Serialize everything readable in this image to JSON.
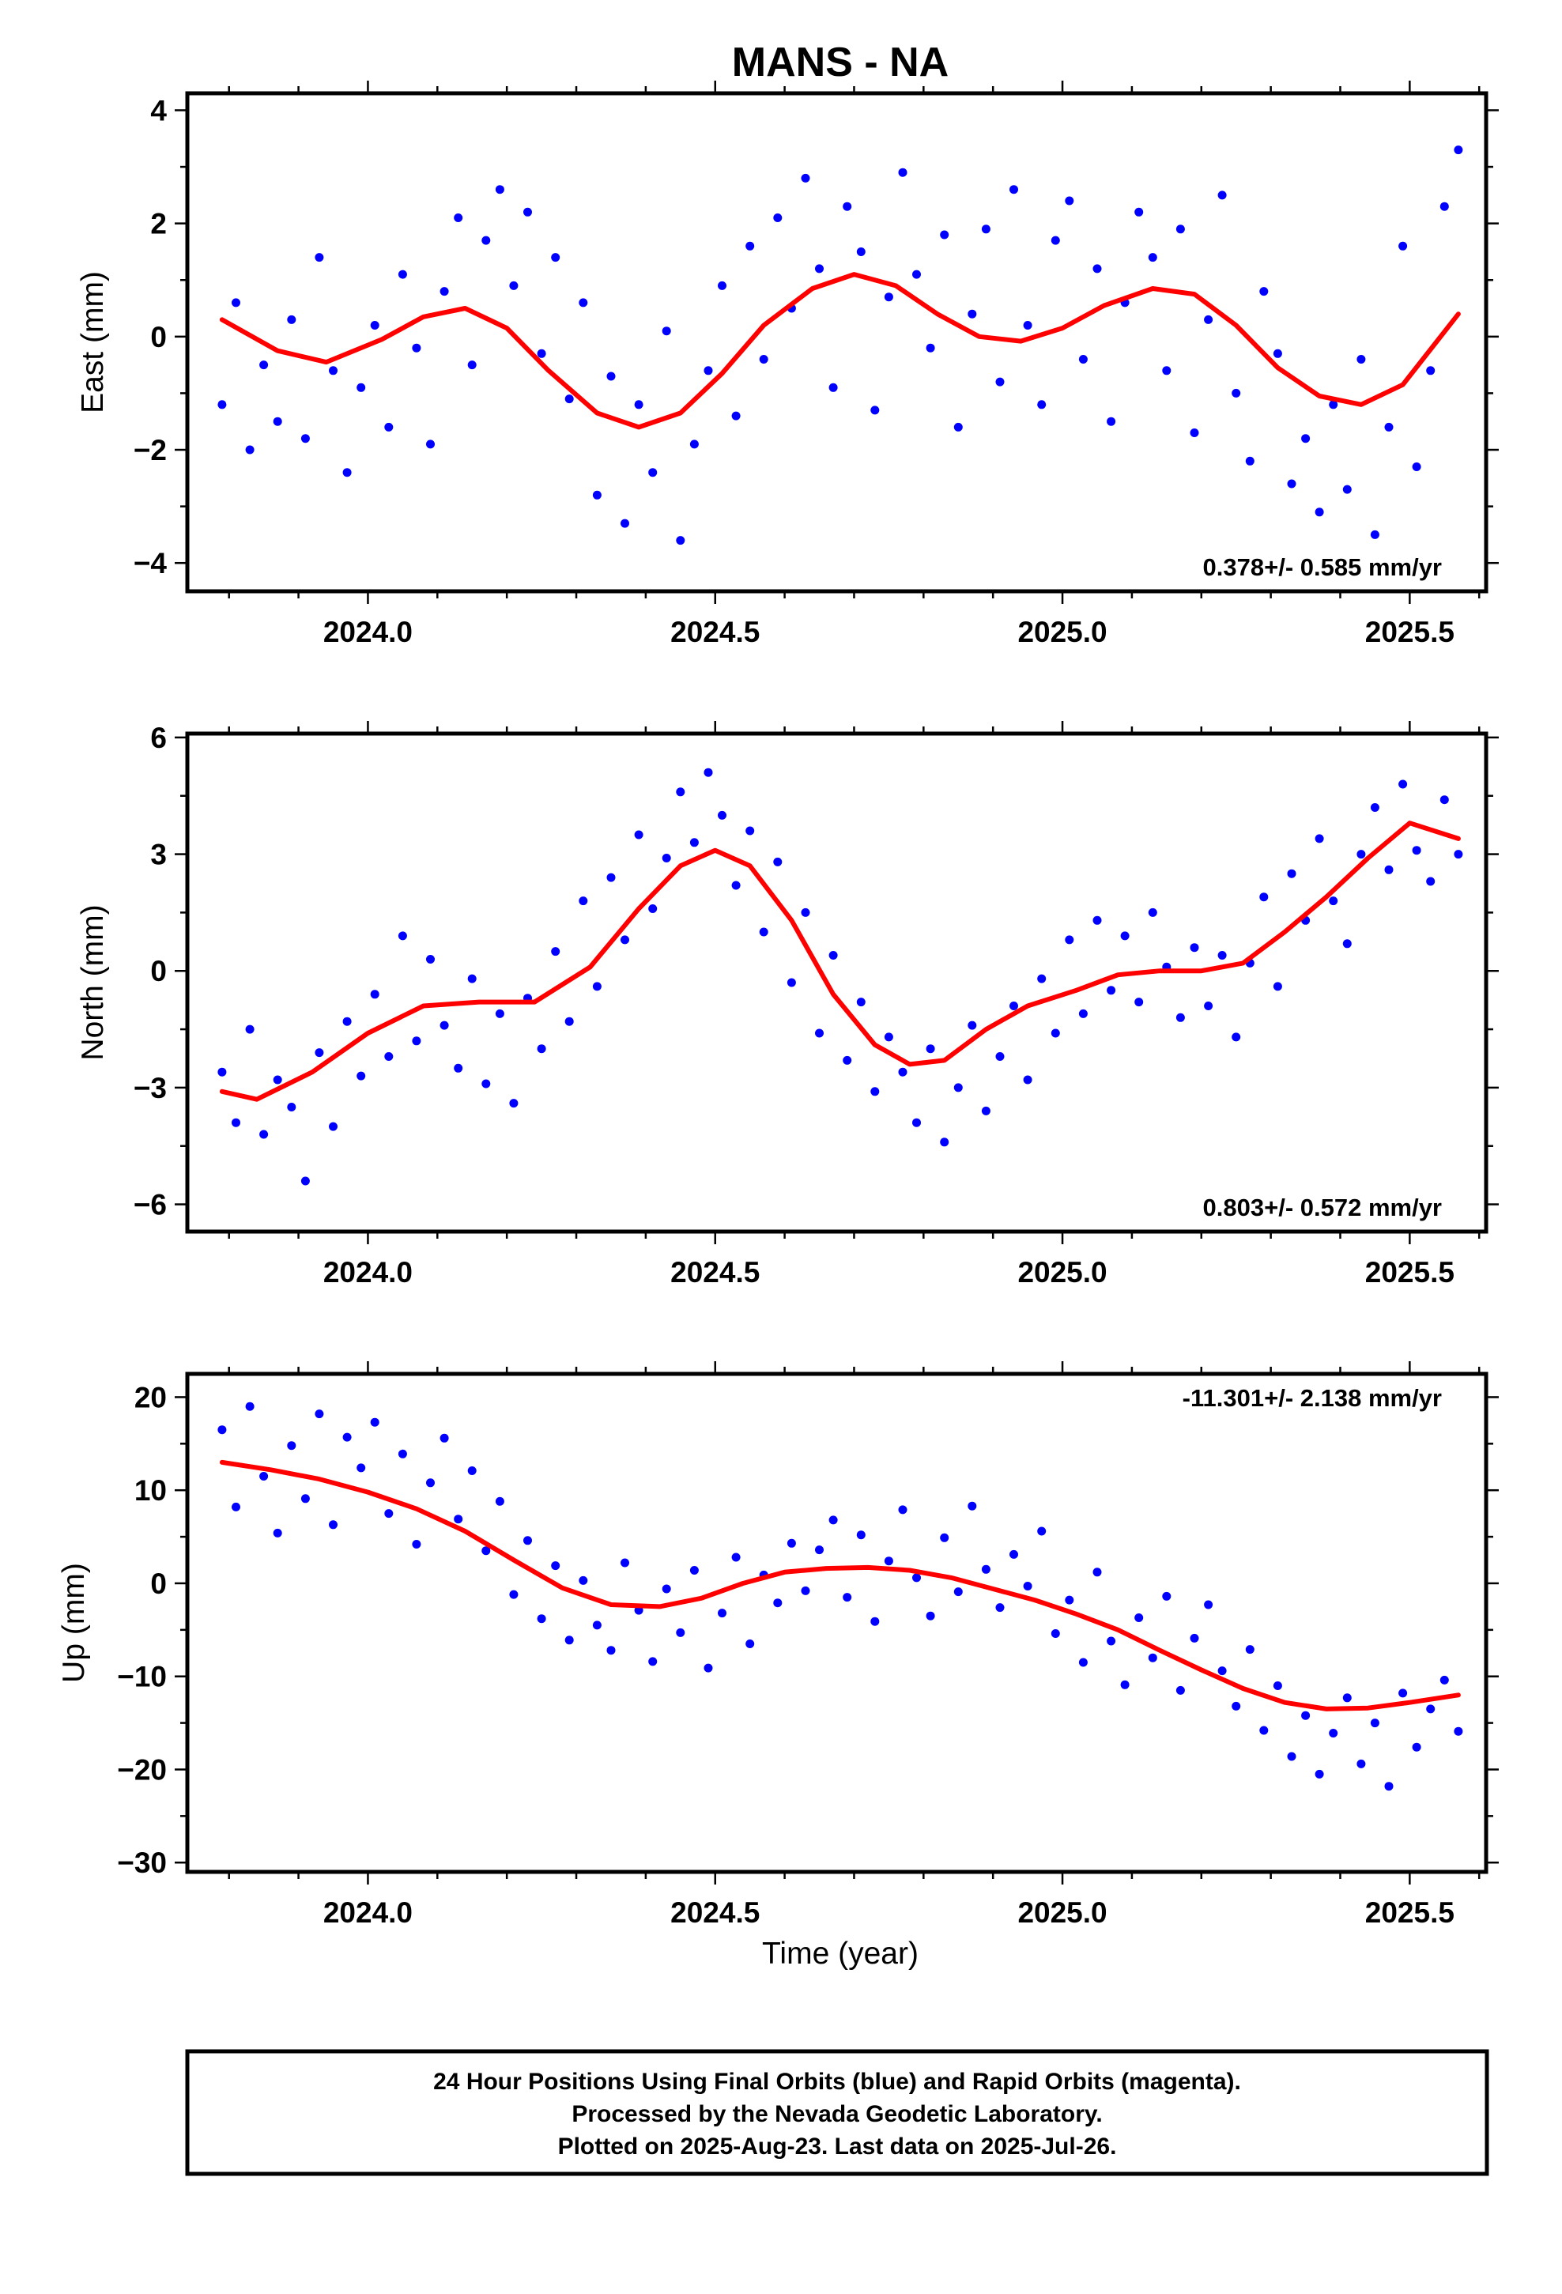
{
  "chart_data": [
    {
      "type": "scatter",
      "title": "MANS - NA",
      "ylabel": "East (mm)",
      "xlabel": "",
      "xlim": [
        2023.74,
        2025.61
      ],
      "ylim": [
        -4.5,
        4.3
      ],
      "xticks": [
        2024.0,
        2024.5,
        2025.0,
        2025.5
      ],
      "xtick_labels": [
        "2024.0",
        "2024.5",
        "2025.0",
        "2025.5"
      ],
      "yticks": [
        -4,
        -2,
        0,
        2,
        4
      ],
      "ytick_labels": [
        "−4",
        "−2",
        "0",
        "2",
        "4"
      ],
      "rate_label": "0.378+/- 0.585 mm/yr",
      "rate_position": "bottom-right",
      "series": [
        {
          "kind": "points",
          "color": "#0000ff",
          "x": [
            2023.79,
            2023.81,
            2023.83,
            2023.85,
            2023.87,
            2023.89,
            2023.91,
            2023.93,
            2023.95,
            2023.97,
            2023.99,
            2024.01,
            2024.03,
            2024.05,
            2024.07,
            2024.09,
            2024.11,
            2024.13,
            2024.15,
            2024.17,
            2024.19,
            2024.21,
            2024.23,
            2024.25,
            2024.27,
            2024.29,
            2024.31,
            2024.33,
            2024.35,
            2024.37,
            2024.39,
            2024.41,
            2024.43,
            2024.45,
            2024.47,
            2024.49,
            2024.51,
            2024.53,
            2024.55,
            2024.57,
            2024.59,
            2024.61,
            2024.63,
            2024.65,
            2024.67,
            2024.69,
            2024.71,
            2024.73,
            2024.75,
            2024.77,
            2024.79,
            2024.81,
            2024.83,
            2024.85,
            2024.87,
            2024.89,
            2024.91,
            2024.93,
            2024.95,
            2024.97,
            2024.99,
            2025.01,
            2025.03,
            2025.05,
            2025.07,
            2025.09,
            2025.11,
            2025.13,
            2025.15,
            2025.17,
            2025.19,
            2025.21,
            2025.23,
            2025.25,
            2025.27,
            2025.29,
            2025.31,
            2025.33,
            2025.35,
            2025.37,
            2025.39,
            2025.41,
            2025.43,
            2025.45,
            2025.47,
            2025.49,
            2025.51,
            2025.53,
            2025.55,
            2025.57
          ],
          "y": [
            -1.2,
            0.6,
            -2.0,
            -0.5,
            -1.5,
            0.3,
            -1.8,
            1.4,
            -0.6,
            -2.4,
            -0.9,
            0.2,
            -1.6,
            1.1,
            -0.2,
            -1.9,
            0.8,
            2.1,
            -0.5,
            1.7,
            2.6,
            0.9,
            2.2,
            -0.3,
            1.4,
            -1.1,
            0.6,
            -2.8,
            -0.7,
            -3.3,
            -1.2,
            -2.4,
            0.1,
            -3.6,
            -1.9,
            -0.6,
            0.9,
            -1.4,
            1.6,
            -0.4,
            2.1,
            0.5,
            2.8,
            1.2,
            -0.9,
            2.3,
            1.5,
            -1.3,
            0.7,
            2.9,
            1.1,
            -0.2,
            1.8,
            -1.6,
            0.4,
            1.9,
            -0.8,
            2.6,
            0.2,
            -1.2,
            1.7,
            2.4,
            -0.4,
            1.2,
            -1.5,
            0.6,
            2.2,
            1.4,
            -0.6,
            1.9,
            -1.7,
            0.3,
            2.5,
            -1.0,
            -2.2,
            0.8,
            -0.3,
            -2.6,
            -1.8,
            -3.1,
            -1.2,
            -2.7,
            -0.4,
            -3.5,
            -1.6,
            1.6,
            -2.3,
            -0.6,
            2.3,
            3.3
          ]
        },
        {
          "kind": "fit",
          "color": "#ff0000",
          "x": [
            2023.79,
            2023.87,
            2023.94,
            2024.02,
            2024.08,
            2024.14,
            2024.2,
            2024.26,
            2024.33,
            2024.39,
            2024.45,
            2024.51,
            2024.57,
            2024.64,
            2024.7,
            2024.76,
            2024.82,
            2024.88,
            2024.94,
            2025.0,
            2025.06,
            2025.13,
            2025.19,
            2025.25,
            2025.31,
            2025.37,
            2025.43,
            2025.49,
            2025.57
          ],
          "y": [
            0.3,
            -0.25,
            -0.45,
            -0.05,
            0.35,
            0.5,
            0.15,
            -0.6,
            -1.35,
            -1.6,
            -1.35,
            -0.65,
            0.2,
            0.85,
            1.1,
            0.9,
            0.4,
            0.0,
            -0.08,
            0.15,
            0.55,
            0.85,
            0.75,
            0.2,
            -0.55,
            -1.05,
            -1.2,
            -0.85,
            0.4
          ]
        }
      ]
    },
    {
      "type": "scatter",
      "title": "",
      "ylabel": "North (mm)",
      "xlabel": "",
      "xlim": [
        2023.74,
        2025.61
      ],
      "ylim": [
        -6.7,
        6.1
      ],
      "xticks": [
        2024.0,
        2024.5,
        2025.0,
        2025.5
      ],
      "xtick_labels": [
        "2024.0",
        "2024.5",
        "2025.0",
        "2025.5"
      ],
      "yticks": [
        -6,
        -3,
        0,
        3,
        6
      ],
      "ytick_labels": [
        "−6",
        "−3",
        "0",
        "3",
        "6"
      ],
      "rate_label": "0.803+/- 0.572 mm/yr",
      "rate_position": "bottom-right",
      "series": [
        {
          "kind": "points",
          "color": "#0000ff",
          "x": [
            2023.79,
            2023.81,
            2023.83,
            2023.85,
            2023.87,
            2023.89,
            2023.91,
            2023.93,
            2023.95,
            2023.97,
            2023.99,
            2024.01,
            2024.03,
            2024.05,
            2024.07,
            2024.09,
            2024.11,
            2024.13,
            2024.15,
            2024.17,
            2024.19,
            2024.21,
            2024.23,
            2024.25,
            2024.27,
            2024.29,
            2024.31,
            2024.33,
            2024.35,
            2024.37,
            2024.39,
            2024.41,
            2024.43,
            2024.45,
            2024.47,
            2024.49,
            2024.51,
            2024.53,
            2024.55,
            2024.57,
            2024.59,
            2024.61,
            2024.63,
            2024.65,
            2024.67,
            2024.69,
            2024.71,
            2024.73,
            2024.75,
            2024.77,
            2024.79,
            2024.81,
            2024.83,
            2024.85,
            2024.87,
            2024.89,
            2024.91,
            2024.93,
            2024.95,
            2024.97,
            2024.99,
            2025.01,
            2025.03,
            2025.05,
            2025.07,
            2025.09,
            2025.11,
            2025.13,
            2025.15,
            2025.17,
            2025.19,
            2025.21,
            2025.23,
            2025.25,
            2025.27,
            2025.29,
            2025.31,
            2025.33,
            2025.35,
            2025.37,
            2025.39,
            2025.41,
            2025.43,
            2025.45,
            2025.47,
            2025.49,
            2025.51,
            2025.53,
            2025.55,
            2025.57
          ],
          "y": [
            -2.6,
            -3.9,
            -1.5,
            -4.2,
            -2.8,
            -3.5,
            -5.4,
            -2.1,
            -4.0,
            -1.3,
            -2.7,
            -0.6,
            -2.2,
            0.9,
            -1.8,
            0.3,
            -1.4,
            -2.5,
            -0.2,
            -2.9,
            -1.1,
            -3.4,
            -0.7,
            -2.0,
            0.5,
            -1.3,
            1.8,
            -0.4,
            2.4,
            0.8,
            3.5,
            1.6,
            2.9,
            4.6,
            3.3,
            5.1,
            4.0,
            2.2,
            3.6,
            1.0,
            2.8,
            -0.3,
            1.5,
            -1.6,
            0.4,
            -2.3,
            -0.8,
            -3.1,
            -1.7,
            -2.6,
            -3.9,
            -2.0,
            -4.4,
            -3.0,
            -1.4,
            -3.6,
            -2.2,
            -0.9,
            -2.8,
            -0.2,
            -1.6,
            0.8,
            -1.1,
            1.3,
            -0.5,
            0.9,
            -0.8,
            1.5,
            0.1,
            -1.2,
            0.6,
            -0.9,
            0.4,
            -1.7,
            0.2,
            1.9,
            -0.4,
            2.5,
            1.3,
            3.4,
            1.8,
            0.7,
            3.0,
            4.2,
            2.6,
            4.8,
            3.1,
            2.3,
            4.4,
            3.0
          ]
        },
        {
          "kind": "fit",
          "color": "#ff0000",
          "x": [
            2023.79,
            2023.84,
            2023.92,
            2024.0,
            2024.08,
            2024.16,
            2024.24,
            2024.32,
            2024.39,
            2024.45,
            2024.5,
            2024.55,
            2024.61,
            2024.67,
            2024.73,
            2024.78,
            2024.83,
            2024.89,
            2024.95,
            2025.02,
            2025.08,
            2025.14,
            2025.2,
            2025.26,
            2025.32,
            2025.38,
            2025.44,
            2025.5,
            2025.57
          ],
          "y": [
            -3.1,
            -3.3,
            -2.6,
            -1.6,
            -0.9,
            -0.8,
            -0.8,
            0.1,
            1.6,
            2.7,
            3.1,
            2.7,
            1.3,
            -0.6,
            -1.9,
            -2.4,
            -2.3,
            -1.5,
            -0.9,
            -0.5,
            -0.1,
            0.0,
            0.0,
            0.2,
            1.0,
            1.9,
            2.9,
            3.8,
            3.4
          ]
        }
      ]
    },
    {
      "type": "scatter",
      "title": "",
      "ylabel": "Up (mm)",
      "xlabel": "Time (year)",
      "xlim": [
        2023.74,
        2025.61
      ],
      "ylim": [
        -31,
        22.5
      ],
      "xticks": [
        2024.0,
        2024.5,
        2025.0,
        2025.5
      ],
      "xtick_labels": [
        "2024.0",
        "2024.5",
        "2025.0",
        "2025.5"
      ],
      "yticks": [
        -30,
        -20,
        -10,
        0,
        10,
        20
      ],
      "ytick_labels": [
        "−30",
        "−20",
        "−10",
        "0",
        "10",
        "20"
      ],
      "rate_label": "-11.301+/- 2.138 mm/yr",
      "rate_position": "top-right",
      "series": [
        {
          "kind": "points",
          "color": "#0000ff",
          "x": [
            2023.79,
            2023.81,
            2023.83,
            2023.85,
            2023.87,
            2023.89,
            2023.91,
            2023.93,
            2023.95,
            2023.97,
            2023.99,
            2024.01,
            2024.03,
            2024.05,
            2024.07,
            2024.09,
            2024.11,
            2024.13,
            2024.15,
            2024.17,
            2024.19,
            2024.21,
            2024.23,
            2024.25,
            2024.27,
            2024.29,
            2024.31,
            2024.33,
            2024.35,
            2024.37,
            2024.39,
            2024.41,
            2024.43,
            2024.45,
            2024.47,
            2024.49,
            2024.51,
            2024.53,
            2024.55,
            2024.57,
            2024.59,
            2024.61,
            2024.63,
            2024.65,
            2024.67,
            2024.69,
            2024.71,
            2024.73,
            2024.75,
            2024.77,
            2024.79,
            2024.81,
            2024.83,
            2024.85,
            2024.87,
            2024.89,
            2024.91,
            2024.93,
            2024.95,
            2024.97,
            2024.99,
            2025.01,
            2025.03,
            2025.05,
            2025.07,
            2025.09,
            2025.11,
            2025.13,
            2025.15,
            2025.17,
            2025.19,
            2025.21,
            2025.23,
            2025.25,
            2025.27,
            2025.29,
            2025.31,
            2025.33,
            2025.35,
            2025.37,
            2025.39,
            2025.41,
            2025.43,
            2025.45,
            2025.47,
            2025.49,
            2025.51,
            2025.53,
            2025.55,
            2025.57
          ],
          "y": [
            16.5,
            8.2,
            19.0,
            11.5,
            5.4,
            14.8,
            9.1,
            18.2,
            6.3,
            15.7,
            12.4,
            17.3,
            7.5,
            13.9,
            4.2,
            10.8,
            15.6,
            6.9,
            12.1,
            3.5,
            8.8,
            -1.2,
            4.6,
            -3.8,
            1.9,
            -6.1,
            0.3,
            -4.5,
            -7.2,
            2.2,
            -2.9,
            -8.4,
            -0.6,
            -5.3,
            1.4,
            -9.1,
            -3.2,
            2.8,
            -6.5,
            0.9,
            -2.1,
            4.3,
            -0.8,
            3.6,
            6.8,
            -1.5,
            5.2,
            -4.1,
            2.4,
            7.9,
            0.6,
            -3.5,
            4.9,
            -0.9,
            8.3,
            1.5,
            -2.6,
            3.1,
            -0.3,
            5.6,
            -5.4,
            -1.8,
            -8.5,
            1.2,
            -6.2,
            -10.9,
            -3.7,
            -8.0,
            -1.4,
            -11.5,
            -5.9,
            -2.3,
            -9.4,
            -13.2,
            -7.1,
            -15.8,
            -11.0,
            -18.6,
            -14.2,
            -20.5,
            -16.1,
            -12.3,
            -19.4,
            -15.0,
            -21.8,
            -11.8,
            -17.6,
            -13.5,
            -10.4,
            -15.9
          ]
        },
        {
          "kind": "fit",
          "color": "#ff0000",
          "x": [
            2023.79,
            2023.86,
            2023.93,
            2024.0,
            2024.07,
            2024.14,
            2024.21,
            2024.28,
            2024.35,
            2024.42,
            2024.48,
            2024.54,
            2024.6,
            2024.66,
            2024.72,
            2024.78,
            2024.84,
            2024.9,
            2024.96,
            2025.02,
            2025.08,
            2025.14,
            2025.2,
            2025.26,
            2025.32,
            2025.38,
            2025.44,
            2025.5,
            2025.57
          ],
          "y": [
            13.0,
            12.2,
            11.2,
            9.8,
            8.0,
            5.6,
            2.5,
            -0.5,
            -2.3,
            -2.5,
            -1.6,
            0.0,
            1.2,
            1.6,
            1.7,
            1.4,
            0.6,
            -0.6,
            -1.8,
            -3.3,
            -5.0,
            -7.2,
            -9.3,
            -11.3,
            -12.8,
            -13.5,
            -13.4,
            -12.8,
            -12.0
          ]
        }
      ]
    }
  ],
  "footer": {
    "line1": "24 Hour Positions Using Final Orbits (blue) and Rapid Orbits (magenta).",
    "line2": "Processed by the Nevada Geodetic Laboratory.",
    "line3": "Plotted on 2025-Aug-23. Last data on 2025-Jul-26."
  }
}
